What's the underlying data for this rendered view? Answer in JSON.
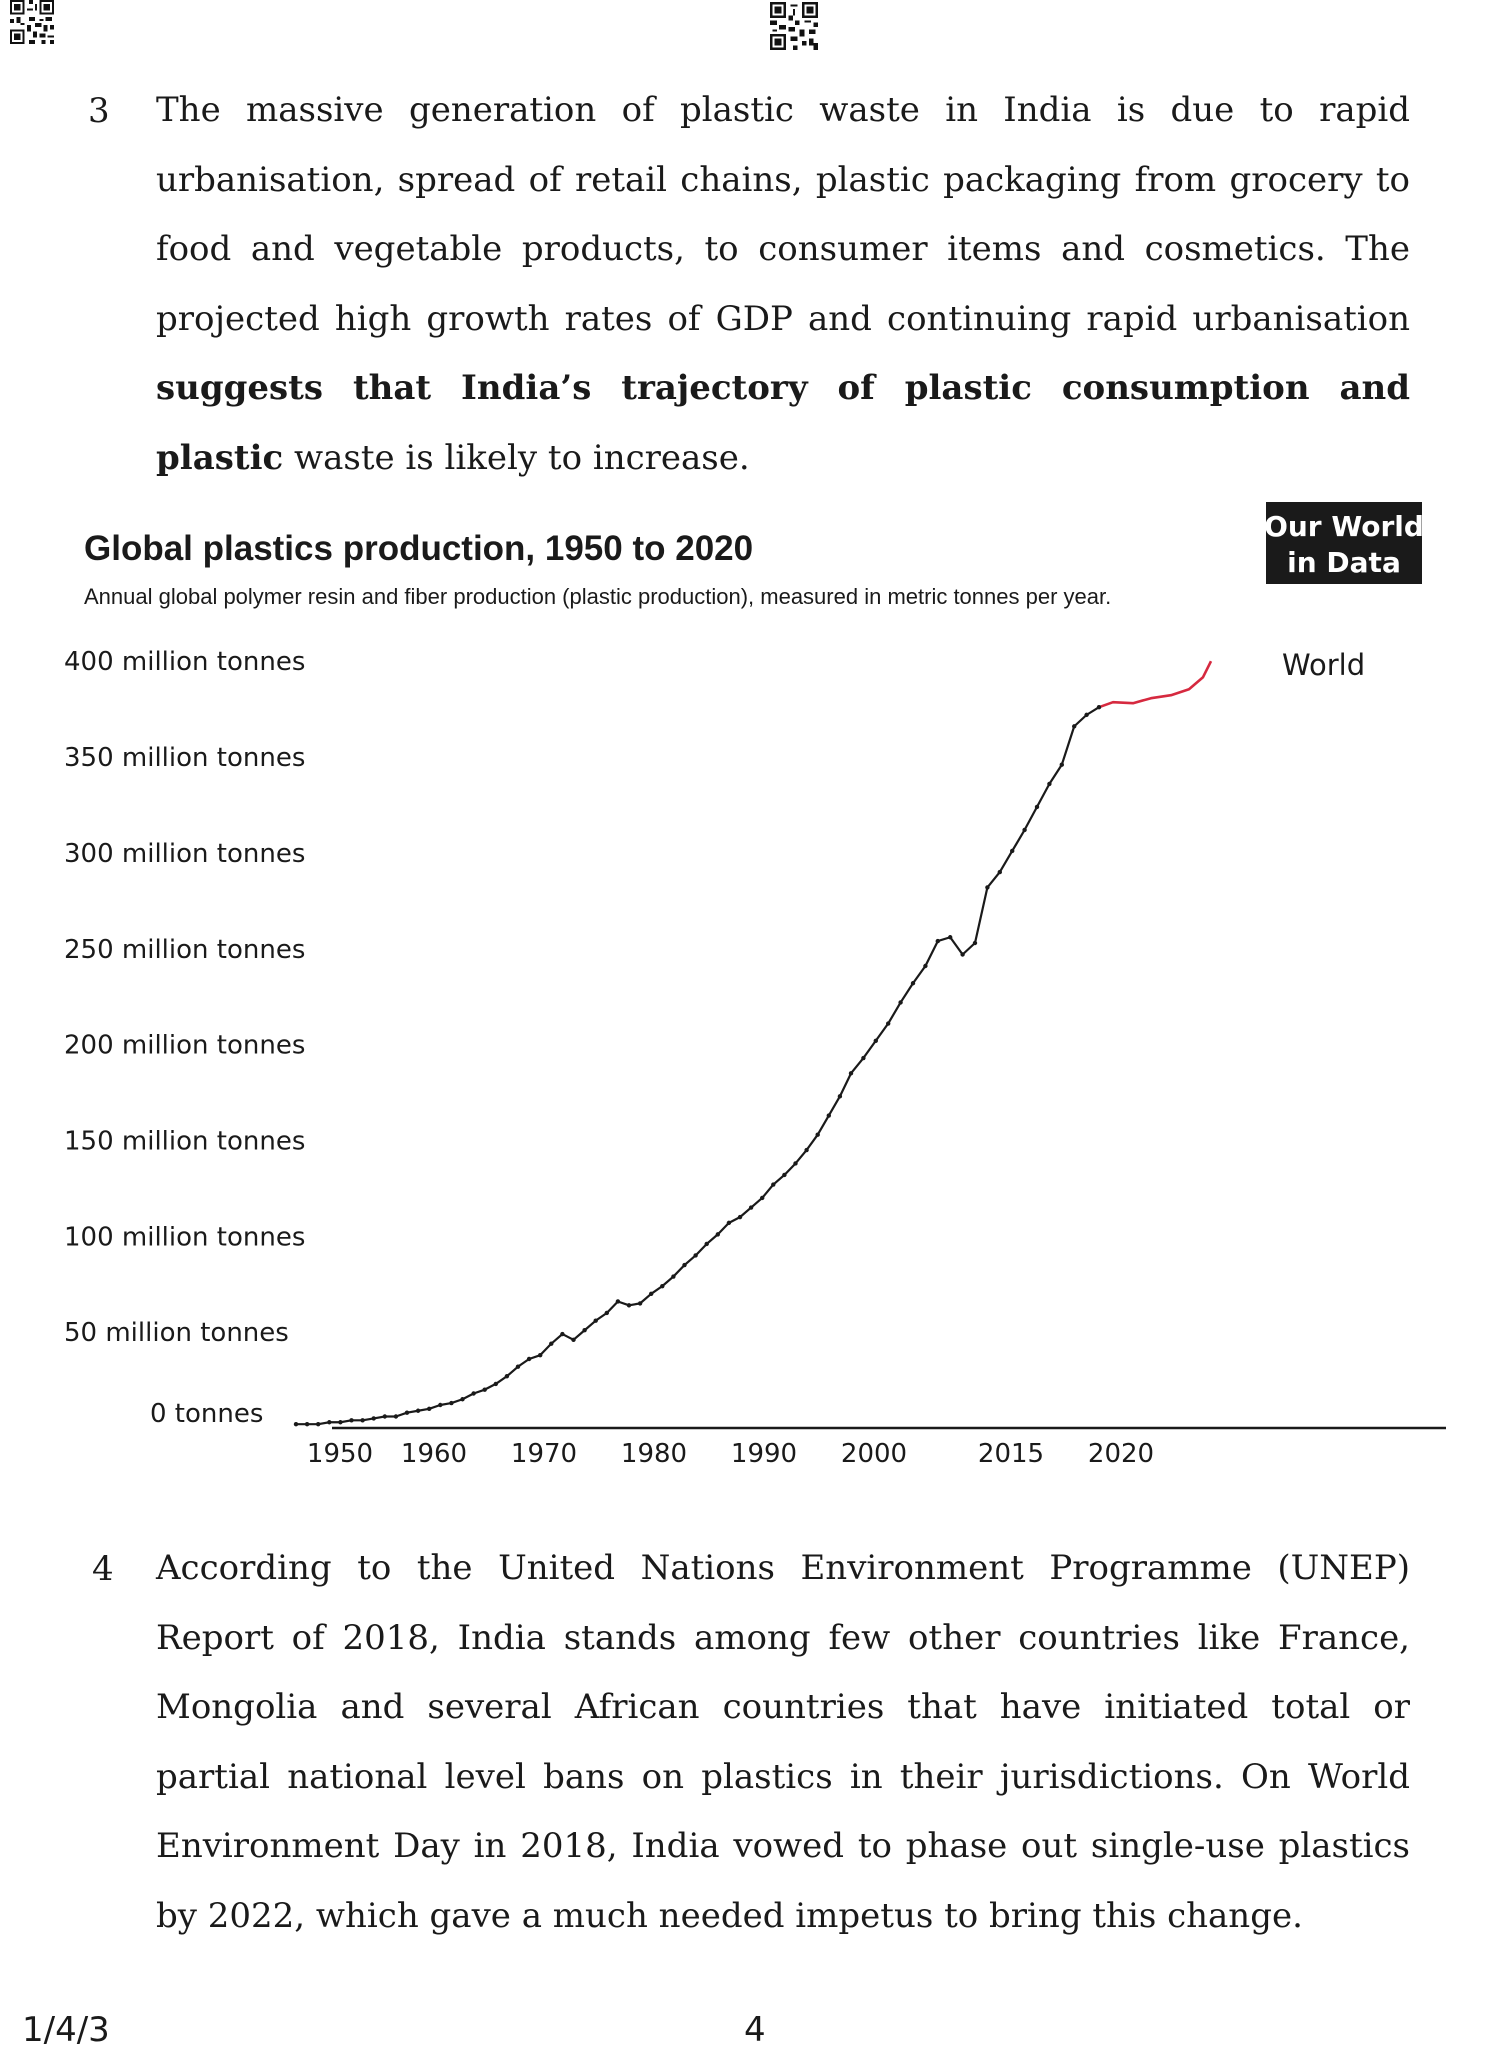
{
  "paragraphs": [
    {
      "number": "3",
      "text_before": "The massive generation of plastic waste in India is due to rapid urbanisation, spread of retail chains, plastic packaging from grocery to food and vegetable products, to consumer items and cosmetics. The projected high growth rates of GDP and continuing rapid urbanisation ",
      "text_bold": "suggests that India’s trajectory of plastic consumption and plastic",
      "text_after": " waste is likely to increase."
    },
    {
      "number": "4",
      "text": "According to the United Nations Environment Programme (UNEP) Report of 2018, India stands among few other countries like France, Mongolia and several African countries that have initiated total or partial national level bans on plastics in their jurisdictions. On World Environment Day in 2018, India vowed to phase out single-use plastics by 2022, which gave a much needed impetus to bring this change."
    }
  ],
  "chart_data": {
    "type": "line",
    "title": "Global plastics production, 1950 to 2020",
    "subtitle": "Annual global polymer resin and fiber production (plastic production), measured in metric tonnes per year.",
    "logo_line1": "Our World",
    "logo_line2": "in Data",
    "series_label": "World",
    "ytick_labels": [
      "400 million tonnes",
      "350 million tonnes",
      "300 million tonnes",
      "250 million tonnes",
      "200 million tonnes",
      "150 million tonnes",
      "100 million tonnes",
      "50 million tonnes",
      "0 tonnes"
    ],
    "ytick_values": [
      400,
      350,
      300,
      250,
      200,
      150,
      100,
      50,
      0
    ],
    "xtick_labels": [
      "1950",
      "1960",
      "1970",
      "1980",
      "1990",
      "2000",
      "2015",
      "2020"
    ],
    "xlabel": "",
    "ylabel": "",
    "ylim": [
      0,
      400
    ],
    "unit": "million tonnes",
    "x": [
      1950,
      1951,
      1952,
      1953,
      1954,
      1955,
      1956,
      1957,
      1958,
      1959,
      1960,
      1961,
      1962,
      1963,
      1964,
      1965,
      1966,
      1967,
      1968,
      1969,
      1970,
      1971,
      1972,
      1973,
      1974,
      1975,
      1976,
      1977,
      1978,
      1979,
      1980,
      1981,
      1982,
      1983,
      1984,
      1985,
      1986,
      1987,
      1988,
      1989,
      1990,
      1991,
      1992,
      1993,
      1994,
      1995,
      1996,
      1997,
      1998,
      1999,
      2000,
      2001,
      2002,
      2003,
      2004,
      2005,
      2006,
      2007,
      2008,
      2009,
      2010,
      2011,
      2012,
      2013,
      2014,
      2015,
      2016,
      2017,
      2018,
      2019,
      2020
    ],
    "values": [
      2,
      2,
      2,
      3,
      3,
      4,
      4,
      5,
      6,
      6,
      8,
      9,
      10,
      12,
      13,
      15,
      18,
      20,
      23,
      27,
      32,
      36,
      38,
      44,
      49,
      46,
      51,
      56,
      60,
      66,
      64,
      65,
      70,
      74,
      79,
      85,
      90,
      96,
      101,
      107,
      110,
      115,
      120,
      127,
      132,
      138,
      145,
      153,
      163,
      173,
      185,
      193,
      202,
      211,
      222,
      232,
      241,
      254,
      256,
      247,
      253,
      282,
      290,
      301,
      312,
      324,
      336,
      346,
      366,
      372,
      376
    ]
  },
  "footer": {
    "code": "1/4/3",
    "page": "4"
  }
}
